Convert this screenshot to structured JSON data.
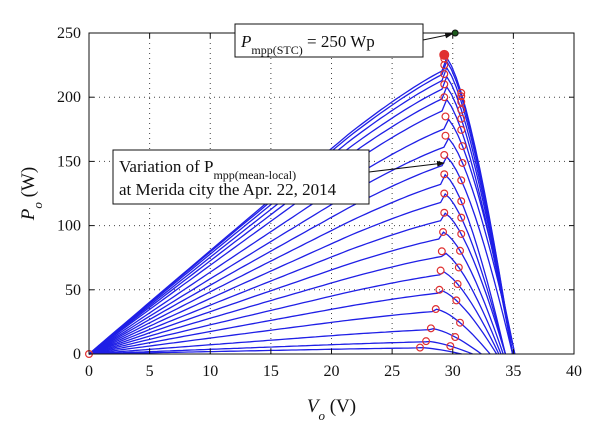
{
  "chart_data": {
    "type": "line",
    "title": "",
    "xlabel": {
      "main": "V",
      "sub": "o",
      "unit": " (V)"
    },
    "ylabel": {
      "main": "P",
      "sub": "o",
      "unit": " (W)"
    },
    "xlim": [
      0,
      40
    ],
    "ylim": [
      0,
      250
    ],
    "xticks": [
      0,
      5,
      10,
      15,
      20,
      25,
      30,
      35,
      40
    ],
    "yticks": [
      0,
      50,
      100,
      150,
      200,
      250
    ],
    "grid": true,
    "curve_color": "#1f1fe6",
    "mpp_color": "#e03030",
    "stc_point": {
      "v": 30.2,
      "p": 250,
      "color": "#1c5a1c"
    },
    "series": [
      {
        "pmpp": 5,
        "vmpp": 27.3
      },
      {
        "pmpp": 10,
        "vmpp": 27.8
      },
      {
        "pmpp": 20,
        "vmpp": 28.2
      },
      {
        "pmpp": 35,
        "vmpp": 28.6
      },
      {
        "pmpp": 50,
        "vmpp": 28.9
      },
      {
        "pmpp": 65,
        "vmpp": 29.0
      },
      {
        "pmpp": 80,
        "vmpp": 29.1
      },
      {
        "pmpp": 95,
        "vmpp": 29.2
      },
      {
        "pmpp": 110,
        "vmpp": 29.3
      },
      {
        "pmpp": 125,
        "vmpp": 29.3
      },
      {
        "pmpp": 140,
        "vmpp": 29.3
      },
      {
        "pmpp": 155,
        "vmpp": 29.3
      },
      {
        "pmpp": 170,
        "vmpp": 29.4
      },
      {
        "pmpp": 185,
        "vmpp": 29.4
      },
      {
        "pmpp": 200,
        "vmpp": 29.3
      },
      {
        "pmpp": 210,
        "vmpp": 29.3
      },
      {
        "pmpp": 218,
        "vmpp": 29.3
      },
      {
        "pmpp": 225,
        "vmpp": 29.3
      },
      {
        "pmpp": 230,
        "vmpp": 29.3
      },
      {
        "pmpp": 233,
        "vmpp": 29.3
      }
    ],
    "annotations": [
      {
        "id": "stc",
        "lines": [
          {
            "pre": "P",
            "sub": "mpp(STC)",
            "post": " = 250 Wp"
          }
        ]
      },
      {
        "id": "local",
        "lines": [
          {
            "pre": "Variation of P",
            "sub": "mpp(mean-local)",
            "post": ""
          },
          {
            "pre": "at Merida city the Apr. 22, 2014",
            "sub": "",
            "post": ""
          }
        ]
      }
    ]
  }
}
